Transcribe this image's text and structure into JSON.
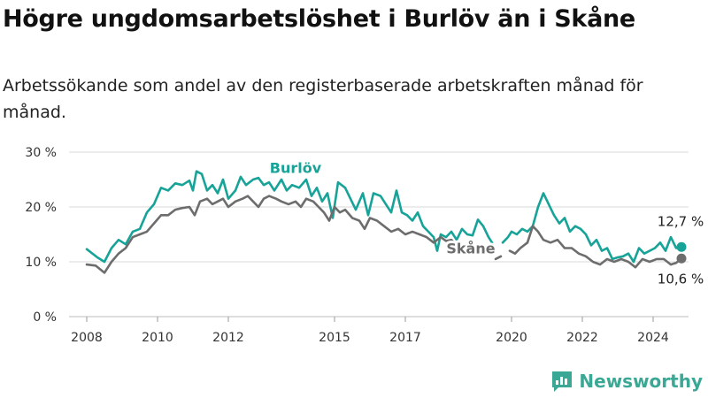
{
  "title": "Högre ungdomsarbetslöshet i Burlöv än i Skåne",
  "subtitle": "Arbetssökande som andel av den registerbaserade arbetskraften månad för månad.",
  "brand": "Newsworthy",
  "colors": {
    "burlov": "#17a398",
    "skane": "#6d6d6d",
    "grid": "#d9d9d9"
  },
  "chart_data": {
    "type": "line",
    "ylim": [
      0,
      30
    ],
    "xlim": [
      2007.5,
      2025.0
    ],
    "y_ticks": [
      {
        "value": 0,
        "label": "0 %"
      },
      {
        "value": 10,
        "label": "10 %"
      },
      {
        "value": 20,
        "label": "20 %"
      },
      {
        "value": 30,
        "label": "30 %"
      }
    ],
    "x_ticks": [
      {
        "value": 2008,
        "label": "2008"
      },
      {
        "value": 2010,
        "label": "2010"
      },
      {
        "value": 2012,
        "label": "2012"
      },
      {
        "value": 2015,
        "label": "2015"
      },
      {
        "value": 2017,
        "label": "2017"
      },
      {
        "value": 2020,
        "label": "2020"
      },
      {
        "value": 2022,
        "label": "2022"
      },
      {
        "value": 2024,
        "label": "2024"
      }
    ],
    "grid": "horizontal",
    "series": [
      {
        "name": "Burlöv",
        "color": "#17a398",
        "end_label": "12,7 %",
        "points": [
          [
            2008.0,
            12.3
          ],
          [
            2008.3,
            10.8
          ],
          [
            2008.5,
            10.0
          ],
          [
            2008.7,
            12.5
          ],
          [
            2008.9,
            14.0
          ],
          [
            2009.1,
            13.2
          ],
          [
            2009.3,
            15.5
          ],
          [
            2009.5,
            16.0
          ],
          [
            2009.7,
            19.0
          ],
          [
            2009.9,
            20.5
          ],
          [
            2010.1,
            23.5
          ],
          [
            2010.3,
            23.0
          ],
          [
            2010.5,
            24.3
          ],
          [
            2010.7,
            24.0
          ],
          [
            2010.9,
            24.8
          ],
          [
            2011.0,
            23.0
          ],
          [
            2011.1,
            26.5
          ],
          [
            2011.25,
            26.0
          ],
          [
            2011.4,
            23.0
          ],
          [
            2011.55,
            24.0
          ],
          [
            2011.7,
            22.5
          ],
          [
            2011.85,
            25.0
          ],
          [
            2012.0,
            21.5
          ],
          [
            2012.2,
            23.0
          ],
          [
            2012.35,
            25.5
          ],
          [
            2012.5,
            24.0
          ],
          [
            2012.7,
            25.0
          ],
          [
            2012.85,
            25.3
          ],
          [
            2013.0,
            24.0
          ],
          [
            2013.15,
            24.5
          ],
          [
            2013.3,
            23.0
          ],
          [
            2013.5,
            25.0
          ],
          [
            2013.65,
            23.0
          ],
          [
            2013.8,
            24.0
          ],
          [
            2014.0,
            23.5
          ],
          [
            2014.2,
            25.0
          ],
          [
            2014.35,
            22.0
          ],
          [
            2014.5,
            23.5
          ],
          [
            2014.65,
            21.0
          ],
          [
            2014.8,
            22.5
          ],
          [
            2014.95,
            18.0
          ],
          [
            2015.1,
            24.5
          ],
          [
            2015.3,
            23.5
          ],
          [
            2015.45,
            21.5
          ],
          [
            2015.6,
            19.5
          ],
          [
            2015.8,
            22.5
          ],
          [
            2015.95,
            18.5
          ],
          [
            2016.1,
            22.5
          ],
          [
            2016.3,
            22.0
          ],
          [
            2016.45,
            20.5
          ],
          [
            2016.6,
            19.0
          ],
          [
            2016.75,
            23.0
          ],
          [
            2016.9,
            19.0
          ],
          [
            2017.05,
            18.5
          ],
          [
            2017.2,
            17.5
          ],
          [
            2017.35,
            19.0
          ],
          [
            2017.5,
            16.5
          ],
          [
            2017.65,
            15.5
          ],
          [
            2017.8,
            14.5
          ],
          [
            2017.9,
            12.0
          ],
          [
            2018.0,
            15.0
          ],
          [
            2018.15,
            14.5
          ],
          [
            2018.3,
            15.5
          ],
          [
            2018.45,
            14.0
          ],
          [
            2018.6,
            16.0
          ],
          [
            2018.75,
            15.0
          ],
          [
            2018.9,
            14.8
          ],
          [
            2019.05,
            17.7
          ],
          [
            2019.2,
            16.5
          ],
          [
            2019.35,
            14.5
          ],
          [
            2019.45,
            13.5
          ],
          null,
          [
            2019.75,
            13.5
          ],
          [
            2019.9,
            14.5
          ],
          [
            2020.0,
            15.5
          ],
          [
            2020.15,
            15.0
          ],
          [
            2020.3,
            16.0
          ],
          [
            2020.45,
            15.5
          ],
          [
            2020.6,
            16.5
          ],
          [
            2020.75,
            20.0
          ],
          [
            2020.9,
            22.5
          ],
          [
            2021.05,
            20.5
          ],
          [
            2021.2,
            18.5
          ],
          [
            2021.35,
            17.0
          ],
          [
            2021.5,
            18.0
          ],
          [
            2021.65,
            15.5
          ],
          [
            2021.8,
            16.5
          ],
          [
            2021.95,
            16.0
          ],
          [
            2022.1,
            15.0
          ],
          [
            2022.25,
            13.0
          ],
          [
            2022.4,
            14.0
          ],
          [
            2022.55,
            12.0
          ],
          [
            2022.7,
            12.5
          ],
          [
            2022.85,
            10.5
          ],
          [
            2023.0,
            10.8
          ],
          [
            2023.15,
            11.0
          ],
          [
            2023.3,
            11.5
          ],
          [
            2023.45,
            10.0
          ],
          [
            2023.6,
            12.5
          ],
          [
            2023.75,
            11.5
          ],
          [
            2023.9,
            12.0
          ],
          [
            2024.05,
            12.5
          ],
          [
            2024.2,
            13.5
          ],
          [
            2024.35,
            12.0
          ],
          [
            2024.5,
            14.5
          ],
          [
            2024.65,
            12.5
          ],
          [
            2024.8,
            12.7
          ]
        ]
      },
      {
        "name": "Skåne",
        "color": "#6d6d6d",
        "end_label": "10,6 %",
        "points": [
          [
            2008.0,
            9.5
          ],
          [
            2008.25,
            9.3
          ],
          [
            2008.5,
            8.0
          ],
          [
            2008.7,
            10.0
          ],
          [
            2008.9,
            11.5
          ],
          [
            2009.1,
            12.5
          ],
          [
            2009.3,
            14.5
          ],
          [
            2009.5,
            15.0
          ],
          [
            2009.7,
            15.5
          ],
          [
            2009.9,
            17.0
          ],
          [
            2010.1,
            18.5
          ],
          [
            2010.3,
            18.5
          ],
          [
            2010.5,
            19.5
          ],
          [
            2010.7,
            19.8
          ],
          [
            2010.9,
            20.0
          ],
          [
            2011.05,
            18.5
          ],
          [
            2011.2,
            21.0
          ],
          [
            2011.4,
            21.5
          ],
          [
            2011.55,
            20.5
          ],
          [
            2011.7,
            21.0
          ],
          [
            2011.85,
            21.5
          ],
          [
            2012.0,
            20.0
          ],
          [
            2012.2,
            21.0
          ],
          [
            2012.4,
            21.5
          ],
          [
            2012.55,
            22.0
          ],
          [
            2012.7,
            21.0
          ],
          [
            2012.85,
            20.0
          ],
          [
            2013.0,
            21.5
          ],
          [
            2013.15,
            22.0
          ],
          [
            2013.35,
            21.5
          ],
          [
            2013.5,
            21.0
          ],
          [
            2013.7,
            20.5
          ],
          [
            2013.9,
            21.0
          ],
          [
            2014.05,
            20.0
          ],
          [
            2014.2,
            21.5
          ],
          [
            2014.4,
            21.0
          ],
          [
            2014.55,
            20.0
          ],
          [
            2014.7,
            19.0
          ],
          [
            2014.85,
            17.5
          ],
          [
            2015.0,
            20.0
          ],
          [
            2015.15,
            19.0
          ],
          [
            2015.3,
            19.5
          ],
          [
            2015.5,
            18.0
          ],
          [
            2015.7,
            17.5
          ],
          [
            2015.85,
            16.0
          ],
          [
            2016.0,
            18.0
          ],
          [
            2016.2,
            17.5
          ],
          [
            2016.4,
            16.5
          ],
          [
            2016.6,
            15.5
          ],
          [
            2016.8,
            16.0
          ],
          [
            2017.0,
            15.0
          ],
          [
            2017.2,
            15.5
          ],
          [
            2017.4,
            15.0
          ],
          [
            2017.6,
            14.5
          ],
          [
            2017.8,
            13.5
          ],
          [
            2018.0,
            14.5
          ],
          [
            2018.15,
            13.8
          ],
          [
            2018.3,
            14.0
          ],
          [
            2018.45,
            13.0
          ],
          [
            2018.6,
            13.2
          ],
          null,
          [
            2019.55,
            10.5
          ],
          [
            2019.7,
            11.0
          ],
          null,
          [
            2019.95,
            12.0
          ],
          [
            2020.1,
            11.5
          ],
          [
            2020.25,
            12.5
          ],
          [
            2020.45,
            13.5
          ],
          [
            2020.6,
            16.5
          ],
          [
            2020.75,
            15.5
          ],
          [
            2020.9,
            14.0
          ],
          [
            2021.1,
            13.5
          ],
          [
            2021.3,
            14.0
          ],
          [
            2021.5,
            12.5
          ],
          [
            2021.7,
            12.5
          ],
          [
            2021.9,
            11.5
          ],
          [
            2022.1,
            11.0
          ],
          [
            2022.3,
            10.0
          ],
          [
            2022.5,
            9.5
          ],
          [
            2022.7,
            10.5
          ],
          [
            2022.9,
            10.0
          ],
          [
            2023.1,
            10.5
          ],
          [
            2023.3,
            10.0
          ],
          [
            2023.5,
            9.0
          ],
          [
            2023.7,
            10.5
          ],
          [
            2023.9,
            10.0
          ],
          [
            2024.1,
            10.5
          ],
          [
            2024.3,
            10.5
          ],
          [
            2024.5,
            9.5
          ],
          [
            2024.65,
            9.8
          ],
          [
            2024.8,
            10.6
          ]
        ]
      }
    ]
  }
}
